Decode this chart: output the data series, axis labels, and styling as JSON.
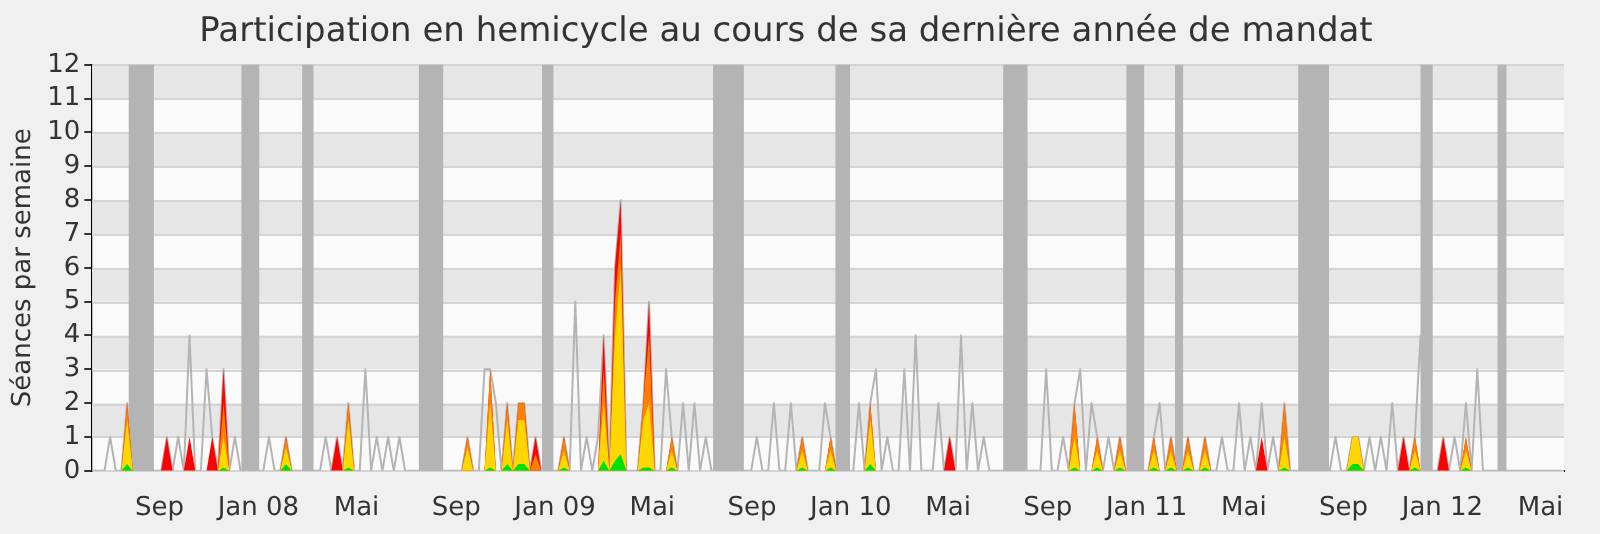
{
  "chart_data": {
    "type": "line",
    "title": "Participation en hemicycle au cours de sa dernière année de mandat",
    "ylabel": "Séances par semaine",
    "xlim": [
      "2007-06-10",
      "2012-05-30"
    ],
    "xticks": [
      {
        "value": "2007-09-01",
        "label": "Sep"
      },
      {
        "value": "2008-01-01",
        "label": "Jan 08"
      },
      {
        "value": "2008-05-01",
        "label": "Mai"
      },
      {
        "value": "2008-09-01",
        "label": "Sep"
      },
      {
        "value": "2009-01-01",
        "label": "Jan 09"
      },
      {
        "value": "2009-05-01",
        "label": "Mai"
      },
      {
        "value": "2009-09-01",
        "label": "Sep"
      },
      {
        "value": "2010-01-01",
        "label": "Jan 10"
      },
      {
        "value": "2010-05-01",
        "label": "Mai"
      },
      {
        "value": "2010-09-01",
        "label": "Sep"
      },
      {
        "value": "2011-01-01",
        "label": "Jan 11"
      },
      {
        "value": "2011-05-01",
        "label": "Mai"
      },
      {
        "value": "2011-09-01",
        "label": "Sep"
      },
      {
        "value": "2012-01-01",
        "label": "Jan 12"
      },
      {
        "value": "2012-05-01",
        "label": "Mai"
      }
    ],
    "ylim": [
      0,
      12
    ],
    "yticks": [
      0,
      1,
      2,
      3,
      4,
      5,
      6,
      7,
      8,
      9,
      10,
      11,
      12
    ],
    "grid": "y",
    "legend": false,
    "bands": [
      {
        "axis": "x",
        "from": "2007-07-25",
        "to": "2007-08-25",
        "color": "#b4b4b4"
      },
      {
        "axis": "x",
        "from": "2007-12-11",
        "to": "2008-01-02",
        "color": "#b4b4b4"
      },
      {
        "axis": "x",
        "from": "2008-02-24",
        "to": "2008-03-09",
        "color": "#b4b4b4"
      },
      {
        "axis": "x",
        "from": "2008-07-17",
        "to": "2008-08-16",
        "color": "#b4b4b4"
      },
      {
        "axis": "x",
        "from": "2008-12-16",
        "to": "2008-12-30",
        "color": "#b4b4b4"
      },
      {
        "axis": "x",
        "from": "2009-07-15",
        "to": "2009-08-22",
        "color": "#b4b4b4"
      },
      {
        "axis": "x",
        "from": "2009-12-13",
        "to": "2009-12-31",
        "color": "#b4b4b4"
      },
      {
        "axis": "x",
        "from": "2010-07-08",
        "to": "2010-08-07",
        "color": "#b4b4b4"
      },
      {
        "axis": "x",
        "from": "2010-12-07",
        "to": "2010-12-29",
        "color": "#b4b4b4"
      },
      {
        "axis": "x",
        "from": "2011-02-05",
        "to": "2011-02-15",
        "color": "#b4b4b4"
      },
      {
        "axis": "x",
        "from": "2011-07-07",
        "to": "2011-08-14",
        "color": "#b4b4b4"
      },
      {
        "axis": "x",
        "from": "2011-12-05",
        "to": "2011-12-20",
        "color": "#b4b4b4"
      },
      {
        "axis": "x",
        "from": "2012-03-09",
        "to": "2012-03-20",
        "color": "#b4b4b4"
      }
    ],
    "x": [
      "2007-07-16",
      "2007-07-23",
      "2007-07-30",
      "2007-09-03",
      "2007-09-10",
      "2007-09-17",
      "2007-10-01",
      "2007-10-08",
      "2007-10-15",
      "2007-10-29",
      "2007-11-05",
      "2007-11-12",
      "2007-11-19",
      "2007-11-26",
      "2008-01-28",
      "2008-02-04",
      "2008-02-11",
      "2008-03-31",
      "2008-04-07",
      "2008-04-14",
      "2008-04-21",
      "2008-04-28",
      "2008-09-08",
      "2008-09-15",
      "2008-09-22",
      "2008-10-06",
      "2008-10-13",
      "2008-10-20",
      "2008-10-27",
      "2008-11-03",
      "2008-11-10",
      "2008-11-17",
      "2008-11-24",
      "2008-12-01",
      "2008-12-08",
      "2008-12-15",
      "2009-01-05",
      "2009-01-12",
      "2009-01-19",
      "2009-02-23",
      "2009-03-02",
      "2009-03-09",
      "2009-03-16",
      "2009-03-23",
      "2009-03-30",
      "2009-04-13",
      "2009-04-20",
      "2009-04-27",
      "2009-05-04",
      "2009-05-18",
      "2009-05-25",
      "2009-06-01",
      "2009-10-26",
      "2009-11-02",
      "2009-11-09",
      "2009-11-30",
      "2009-12-07",
      "2009-12-14",
      "2010-01-18",
      "2010-01-25",
      "2010-02-01",
      "2010-04-26",
      "2010-05-03",
      "2010-05-10",
      "2010-09-27",
      "2010-10-04",
      "2010-10-11",
      "2010-10-25",
      "2010-11-01",
      "2010-11-08",
      "2010-11-22",
      "2010-11-29",
      "2010-12-06",
      "2011-01-03",
      "2011-01-10",
      "2011-01-17",
      "2011-01-24",
      "2011-01-31",
      "2011-02-07",
      "2011-02-14",
      "2011-02-21",
      "2011-02-28",
      "2011-03-07",
      "2011-03-14",
      "2011-03-21",
      "2011-05-16",
      "2011-05-23",
      "2011-05-30",
      "2011-06-13",
      "2011-06-20",
      "2011-06-27",
      "2011-09-05",
      "2011-09-12",
      "2011-09-19",
      "2011-09-26",
      "2011-11-07",
      "2011-11-14",
      "2011-11-21",
      "2011-11-28",
      "2011-12-05",
      "2011-12-26",
      "2012-01-02",
      "2012-01-09",
      "2012-01-23",
      "2012-01-30",
      "2012-02-06"
    ],
    "series": [
      {
        "color": "#b4b4b4",
        "x": [
          "2007-06-11",
          "2007-06-25",
          "2007-07-02",
          "2007-07-09",
          "2007-07-16",
          "2007-07-23",
          "2007-07-30",
          "2007-09-03",
          "2007-09-10",
          "2007-09-17",
          "2007-09-24",
          "2007-10-01",
          "2007-10-08",
          "2007-10-15",
          "2007-10-22",
          "2007-10-29",
          "2007-11-05",
          "2007-11-12",
          "2007-11-19",
          "2007-11-26",
          "2007-12-03",
          "2007-12-10",
          "2008-01-07",
          "2008-01-14",
          "2008-01-21",
          "2008-01-28",
          "2008-02-04",
          "2008-02-11",
          "2008-03-17",
          "2008-03-24",
          "2008-03-31",
          "2008-04-07",
          "2008-04-14",
          "2008-04-21",
          "2008-04-28",
          "2008-05-05",
          "2008-05-12",
          "2008-05-19",
          "2008-05-26",
          "2008-06-02",
          "2008-06-09",
          "2008-06-16",
          "2008-06-23",
          "2008-06-30",
          "2008-09-08",
          "2008-09-15",
          "2008-09-22",
          "2008-09-29",
          "2008-10-06",
          "2008-10-13",
          "2008-10-20",
          "2008-10-27",
          "2008-11-03",
          "2008-11-10",
          "2008-11-17",
          "2008-11-24",
          "2008-12-01",
          "2008-12-08",
          "2008-12-15",
          "2009-01-05",
          "2009-01-12",
          "2009-01-19",
          "2009-01-26",
          "2009-02-02",
          "2009-02-09",
          "2009-02-16",
          "2009-02-23",
          "2009-03-02",
          "2009-03-09",
          "2009-03-16",
          "2009-03-23",
          "2009-03-30",
          "2009-04-13",
          "2009-04-20",
          "2009-04-27",
          "2009-05-04",
          "2009-05-11",
          "2009-05-18",
          "2009-05-25",
          "2009-06-01",
          "2009-06-08",
          "2009-06-15",
          "2009-06-22",
          "2009-06-29",
          "2009-07-06",
          "2009-07-13",
          "2009-08-31",
          "2009-09-07",
          "2009-09-14",
          "2009-09-21",
          "2009-09-28",
          "2009-10-05",
          "2009-10-12",
          "2009-10-19",
          "2009-10-26",
          "2009-11-02",
          "2009-11-09",
          "2009-11-23",
          "2009-11-30",
          "2009-12-07",
          "2009-12-14",
          "2010-01-04",
          "2010-01-11",
          "2010-01-18",
          "2010-01-25",
          "2010-02-01",
          "2010-02-08",
          "2010-02-15",
          "2010-02-22",
          "2010-03-01",
          "2010-03-08",
          "2010-03-15",
          "2010-03-22",
          "2010-03-29",
          "2010-04-12",
          "2010-04-19",
          "2010-04-26",
          "2010-05-03",
          "2010-05-10",
          "2010-05-17",
          "2010-05-24",
          "2010-05-31",
          "2010-06-07",
          "2010-06-14",
          "2010-06-21",
          "2010-08-23",
          "2010-08-30",
          "2010-09-06",
          "2010-09-13",
          "2010-09-20",
          "2010-09-27",
          "2010-10-04",
          "2010-10-11",
          "2010-10-18",
          "2010-10-25",
          "2010-11-01",
          "2010-11-08",
          "2010-11-15",
          "2010-11-22",
          "2010-11-29",
          "2010-12-06",
          "2011-01-03",
          "2011-01-10",
          "2011-01-17",
          "2011-01-24",
          "2011-01-31",
          "2011-02-07",
          "2011-02-14",
          "2011-02-21",
          "2011-02-28",
          "2011-03-07",
          "2011-03-14",
          "2011-03-21",
          "2011-03-28",
          "2011-04-04",
          "2011-04-11",
          "2011-04-18",
          "2011-04-25",
          "2011-05-02",
          "2011-05-09",
          "2011-05-16",
          "2011-05-23",
          "2011-05-30",
          "2011-06-06",
          "2011-06-13",
          "2011-06-20",
          "2011-06-27",
          "2011-08-15",
          "2011-08-22",
          "2011-08-29",
          "2011-09-05",
          "2011-09-12",
          "2011-09-19",
          "2011-09-26",
          "2011-10-03",
          "2011-10-10",
          "2011-10-17",
          "2011-10-24",
          "2011-10-31",
          "2011-11-07",
          "2011-11-14",
          "2011-11-21",
          "2011-11-28",
          "2011-12-05",
          "2011-12-12",
          "2011-12-26",
          "2012-01-02",
          "2012-01-09",
          "2012-01-16",
          "2012-01-23",
          "2012-01-30",
          "2012-02-06",
          "2012-02-13",
          "2012-02-20",
          "2012-05-28"
        ],
        "values": [
          0,
          0,
          1,
          0,
          0,
          2,
          0,
          0,
          1,
          0,
          1,
          0,
          4,
          0,
          0,
          3,
          1,
          0,
          3,
          0,
          1,
          0,
          0,
          1,
          0,
          0,
          1,
          0,
          0,
          1,
          0,
          1,
          0,
          2,
          0,
          0,
          3,
          0,
          1,
          0,
          1,
          0,
          1,
          0,
          0,
          1,
          0,
          0,
          3,
          3,
          2,
          0,
          2,
          0,
          2,
          2,
          0,
          1,
          0,
          0,
          1,
          0,
          5,
          0,
          1,
          0,
          1,
          4,
          0,
          6,
          8,
          0,
          0,
          2,
          5,
          0,
          0,
          3,
          1,
          0,
          2,
          0,
          2,
          0,
          1,
          0,
          0,
          1,
          0,
          0,
          2,
          0,
          0,
          2,
          0,
          1,
          0,
          0,
          2,
          1,
          0,
          0,
          2,
          0,
          2,
          3,
          0,
          1,
          0,
          0,
          3,
          0,
          4,
          0,
          0,
          2,
          0,
          1,
          0,
          4,
          0,
          2,
          0,
          1,
          0,
          0,
          3,
          0,
          0,
          1,
          0,
          2,
          3,
          0,
          2,
          1,
          0,
          1,
          0,
          1,
          0,
          0,
          1,
          2,
          0,
          1,
          0,
          0,
          1,
          0,
          0,
          1,
          0,
          0,
          1,
          0,
          0,
          2,
          0,
          1,
          0,
          2,
          0,
          1,
          0,
          2,
          0,
          0,
          1,
          0,
          0,
          1,
          1,
          0,
          1,
          0,
          1,
          0,
          2,
          0,
          1,
          0,
          1,
          4,
          0,
          0,
          1,
          0,
          1,
          0,
          2,
          0,
          3,
          0,
          0
        ]
      },
      {
        "type": "area",
        "color": "#ff0000",
        "values": [
          0,
          2,
          0,
          0,
          1,
          0,
          0,
          1,
          0,
          0,
          1,
          0,
          3,
          0,
          0,
          1,
          0,
          0,
          1,
          0,
          2,
          0,
          0,
          1,
          0,
          0,
          3,
          0,
          0,
          2,
          0,
          2,
          2,
          0,
          1,
          0,
          0,
          1,
          0,
          0,
          4,
          0,
          6,
          8,
          0,
          0,
          2,
          5,
          0,
          0,
          1,
          0,
          0,
          1,
          0,
          0,
          1,
          0,
          0,
          2,
          0,
          0,
          1,
          0,
          0,
          2,
          0,
          0,
          1,
          0,
          0,
          1,
          0,
          0,
          1,
          0,
          0,
          1,
          0,
          0,
          1,
          0,
          0,
          1,
          0,
          0,
          1,
          0,
          0,
          2,
          0,
          0,
          1,
          1,
          0,
          0,
          1,
          0,
          1,
          0,
          0,
          1,
          0,
          0,
          1,
          0
        ]
      },
      {
        "type": "area",
        "color": "#ff8000",
        "values": [
          0,
          2,
          0,
          0,
          0,
          0,
          0,
          0,
          0,
          0,
          0,
          0,
          2,
          0,
          0,
          1,
          0,
          0,
          0,
          0,
          2,
          0,
          0,
          1,
          0,
          0,
          3,
          0,
          0,
          2,
          0,
          2,
          2,
          0,
          0.5,
          0,
          0,
          1,
          0,
          0,
          3,
          0,
          5,
          7,
          0,
          0,
          2,
          4,
          0,
          0,
          1,
          0,
          0,
          1,
          0,
          0,
          1,
          0,
          0,
          2,
          0,
          0,
          0,
          0,
          0,
          2,
          0,
          0,
          1,
          0,
          0,
          1,
          0,
          0,
          1,
          0,
          0,
          1,
          0,
          0,
          1,
          0,
          0,
          1,
          0,
          0,
          0,
          0,
          0,
          2,
          0,
          0,
          1,
          1,
          0,
          0,
          0,
          0,
          1,
          0,
          0,
          0,
          0,
          0,
          1,
          0
        ]
      },
      {
        "type": "area",
        "color": "#ffd700",
        "values": [
          0,
          1.5,
          0,
          0,
          0,
          0,
          0,
          0,
          0,
          0,
          0,
          0,
          1,
          0,
          0,
          0.7,
          0,
          0,
          0,
          0,
          1.5,
          0,
          0,
          0.7,
          0,
          0,
          2,
          0,
          0,
          1.5,
          0,
          1.5,
          1.5,
          0,
          0,
          0,
          0,
          0.6,
          0,
          0,
          2,
          0,
          4,
          6,
          0,
          0,
          1.5,
          2,
          0,
          0,
          0.6,
          0,
          0,
          0.6,
          0,
          0,
          0.6,
          0,
          0,
          1.5,
          0,
          0,
          0,
          0,
          0,
          1,
          0,
          0,
          0.6,
          0,
          0,
          0.6,
          0,
          0,
          0.6,
          0,
          0,
          0.6,
          0,
          0,
          0.6,
          0,
          0,
          0.6,
          0,
          0,
          0,
          0,
          0,
          1,
          0,
          0,
          1,
          1,
          0,
          0,
          0,
          0,
          0.6,
          0,
          0,
          0,
          0,
          0,
          0.6,
          0
        ]
      },
      {
        "type": "area",
        "color": "#00e000",
        "values": [
          0,
          0.2,
          0,
          0,
          0,
          0,
          0,
          0,
          0,
          0,
          0,
          0,
          0.1,
          0,
          0,
          0.2,
          0,
          0,
          0,
          0,
          0.1,
          0,
          0,
          0,
          0,
          0,
          0.1,
          0,
          0,
          0.2,
          0,
          0.2,
          0.2,
          0,
          0,
          0,
          0,
          0.1,
          0,
          0,
          0.3,
          0,
          0.3,
          0.5,
          0,
          0,
          0.1,
          0.1,
          0,
          0,
          0.1,
          0,
          0,
          0.1,
          0,
          0,
          0.1,
          0,
          0,
          0.2,
          0,
          0,
          0,
          0,
          0,
          0.1,
          0,
          0,
          0.1,
          0,
          0,
          0.1,
          0,
          0,
          0.1,
          0,
          0,
          0.1,
          0,
          0,
          0.1,
          0,
          0,
          0.1,
          0,
          0,
          0,
          0,
          0,
          0.1,
          0,
          0,
          0.2,
          0.2,
          0,
          0,
          0,
          0,
          0.1,
          0,
          0,
          0,
          0,
          0,
          0.1,
          0
        ]
      }
    ]
  }
}
